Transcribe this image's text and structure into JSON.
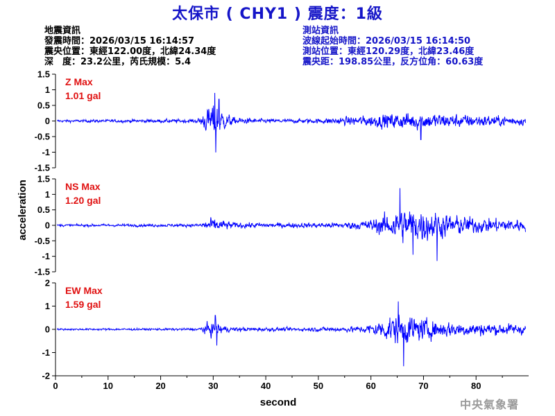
{
  "header": {
    "title": "太保市 ( CHY1 ) 震度：1級"
  },
  "quake_info": {
    "heading": "地震資訊",
    "origin_time": "發震時間：2026/03/15 16:14:57",
    "epicenter": "震央位置：東經122.00度，北緯24.34度",
    "depth_magnitude": "深　度：23.2公里，芮氏規模：5.4"
  },
  "station_info": {
    "heading": "測站資訊",
    "wave_start": "波線起始時間：2026/03/15 16:14:50",
    "location": "測站位置：東經120.29度，北緯23.46度",
    "distance_azimuth": "震央距：198.85公里，反方位角：60.63度"
  },
  "credit": "中央氣象署",
  "colors": {
    "title": "#1515c8",
    "trace": "#0000ff",
    "max_label": "#e01010",
    "station_text": "#1515c8"
  },
  "chart_data": [
    {
      "type": "line",
      "channel": "Z",
      "max_label": "Z Max",
      "max_value": "1.01 gal",
      "ylim": [
        -1.5,
        1.5
      ],
      "yticks": [
        "1.5",
        "1",
        "0.5",
        "0",
        "-0.5",
        "-1",
        "-1.5"
      ],
      "xlim": [
        0,
        90
      ],
      "segments": [
        [
          0,
          0.06
        ],
        [
          27,
          0.1
        ],
        [
          29.5,
          0.8
        ],
        [
          30.6,
          0.9
        ],
        [
          32,
          0.45
        ],
        [
          34,
          0.18
        ],
        [
          40,
          0.1
        ],
        [
          50,
          0.12
        ],
        [
          58,
          0.25
        ],
        [
          62,
          0.35
        ],
        [
          68,
          0.45
        ],
        [
          75,
          0.35
        ],
        [
          82,
          0.3
        ],
        [
          89.5,
          0.2
        ]
      ],
      "peaks": [
        {
          "x": 30.3,
          "y": 0.9
        },
        {
          "x": 30.5,
          "y": -1.01
        },
        {
          "x": 31.1,
          "y": 0.7
        },
        {
          "x": 69.5,
          "y": -0.6
        }
      ]
    },
    {
      "type": "line",
      "channel": "NS",
      "max_label": "NS Max",
      "max_value": "1.20 gal",
      "ylim": [
        -1.5,
        1.5
      ],
      "yticks": [
        "1.5",
        "1",
        "0.5",
        "0",
        "-0.5",
        "-1",
        "-1.5"
      ],
      "xlim": [
        0,
        90
      ],
      "segments": [
        [
          0,
          0.06
        ],
        [
          27,
          0.08
        ],
        [
          29.5,
          0.35
        ],
        [
          31,
          0.3
        ],
        [
          34,
          0.15
        ],
        [
          45,
          0.12
        ],
        [
          55,
          0.15
        ],
        [
          60,
          0.3
        ],
        [
          63,
          0.6
        ],
        [
          66,
          0.9
        ],
        [
          70,
          0.85
        ],
        [
          74,
          0.6
        ],
        [
          80,
          0.4
        ],
        [
          89.5,
          0.3
        ]
      ],
      "peaks": [
        {
          "x": 65.5,
          "y": 1.2
        },
        {
          "x": 72.6,
          "y": -1.15
        },
        {
          "x": 68,
          "y": -0.95
        }
      ]
    },
    {
      "type": "line",
      "channel": "EW",
      "max_label": "EW Max",
      "max_value": "1.59 gal",
      "ylim": [
        -2,
        2
      ],
      "yticks": [
        "2",
        "1",
        "0",
        "-1",
        "-2"
      ],
      "xlim": [
        0,
        90
      ],
      "segments": [
        [
          0,
          0.06
        ],
        [
          27,
          0.08
        ],
        [
          29.5,
          0.5
        ],
        [
          31,
          0.45
        ],
        [
          33,
          0.15
        ],
        [
          45,
          0.12
        ],
        [
          58,
          0.2
        ],
        [
          62,
          0.6
        ],
        [
          64,
          1.0
        ],
        [
          67,
          0.95
        ],
        [
          72,
          0.6
        ],
        [
          80,
          0.45
        ],
        [
          89.5,
          0.35
        ]
      ],
      "peaks": [
        {
          "x": 65.2,
          "y": 1.2
        },
        {
          "x": 66.2,
          "y": -1.59
        },
        {
          "x": 30.4,
          "y": 0.6
        },
        {
          "x": 30.7,
          "y": -0.7
        }
      ]
    }
  ],
  "x_axis": {
    "ticks": [
      "0",
      "10",
      "20",
      "30",
      "40",
      "50",
      "60",
      "70",
      "80"
    ],
    "xlabel": "second"
  },
  "y_axis": {
    "ylabel": "acceleration"
  }
}
